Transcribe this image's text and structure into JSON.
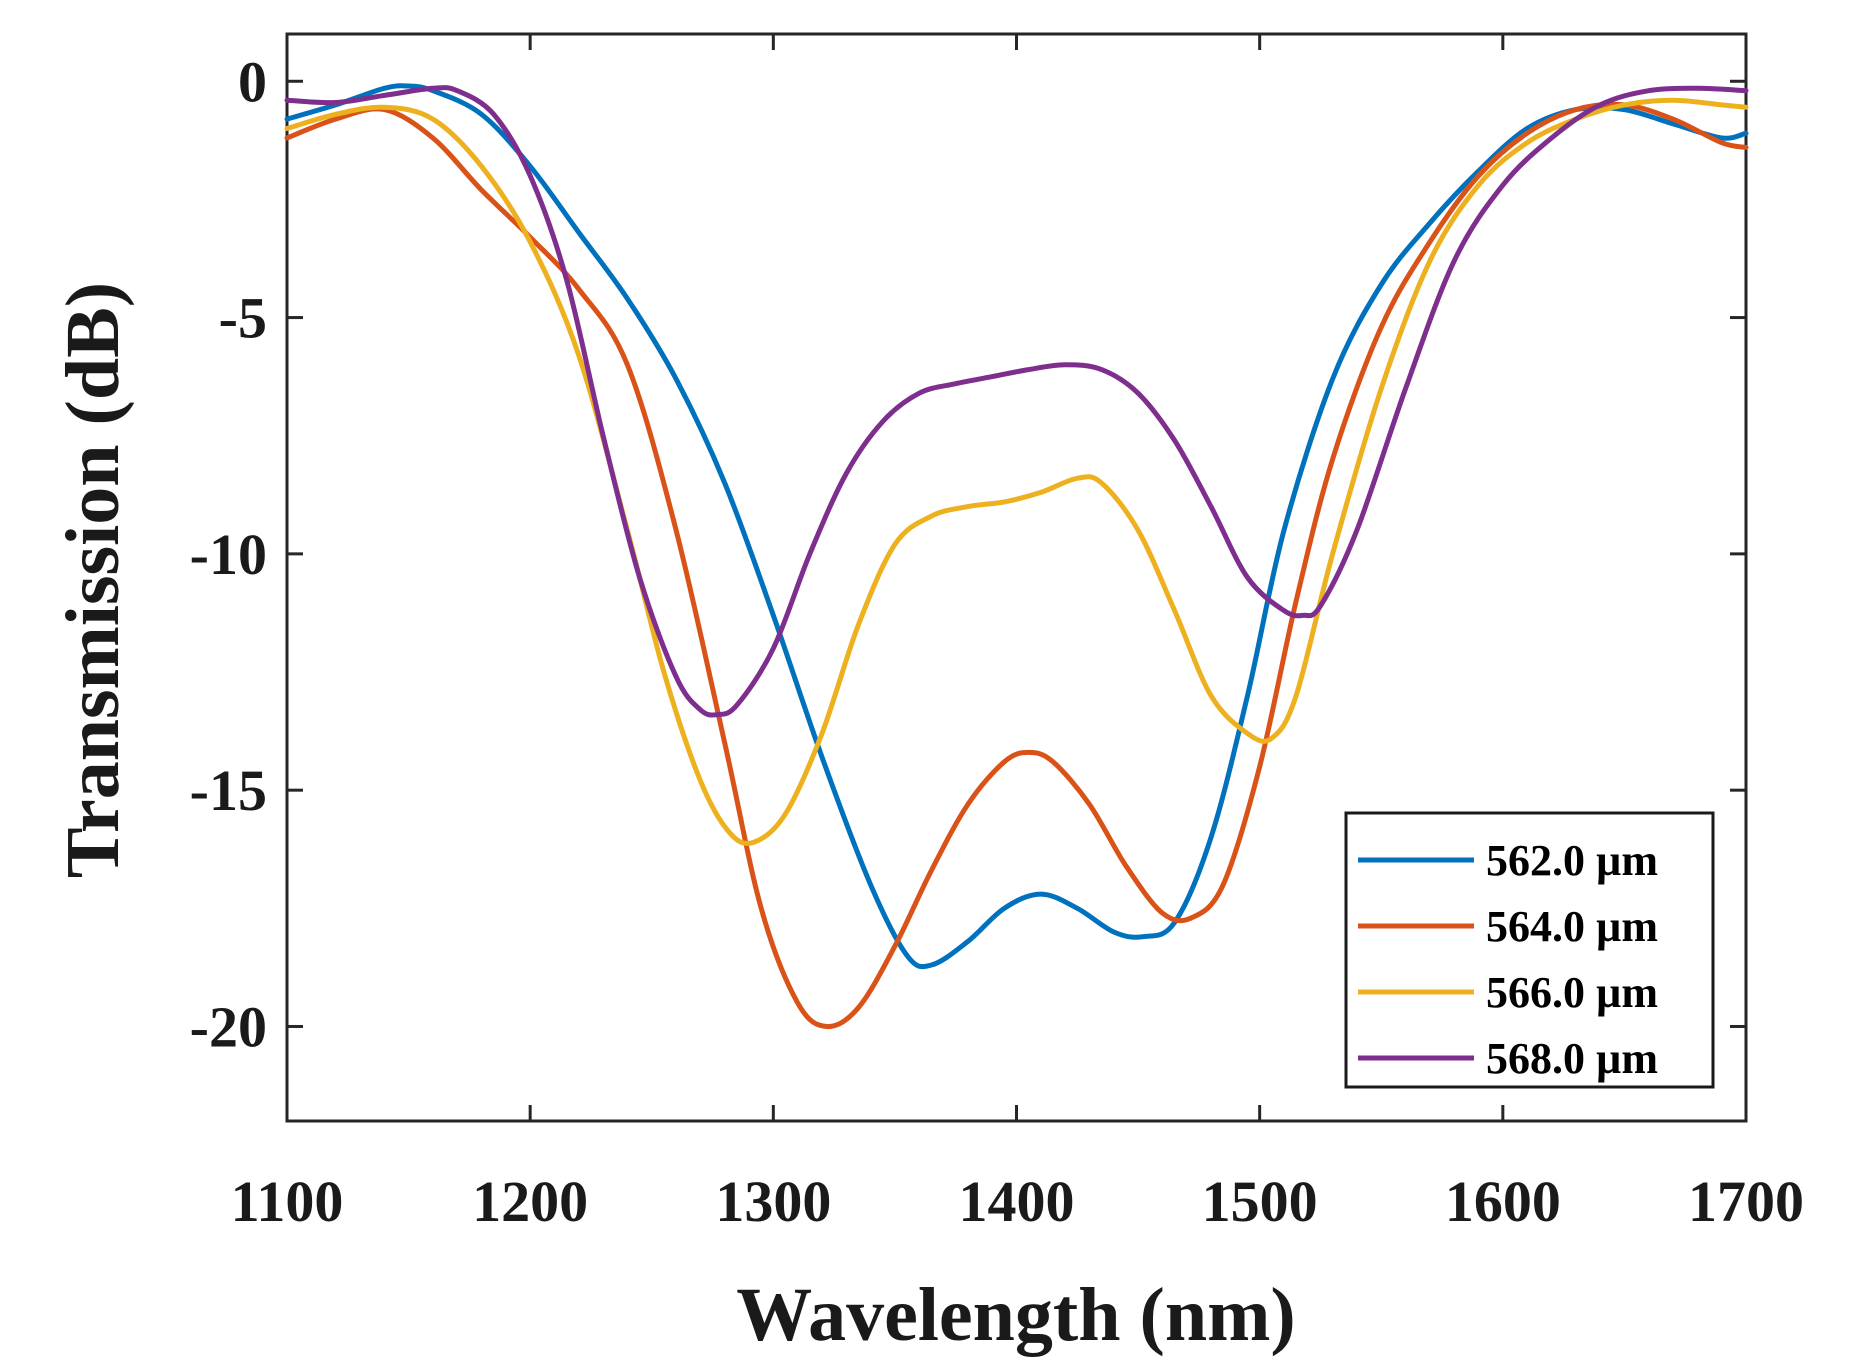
{
  "chart_data": {
    "type": "line",
    "title": "",
    "xlabel": "Wavelength (nm)",
    "ylabel": "Transmission (dB)",
    "xlim": [
      1100,
      1700
    ],
    "ylim": [
      -22,
      1
    ],
    "xticks": [
      1100,
      1200,
      1300,
      1400,
      1500,
      1600,
      1700
    ],
    "yticks": [
      0,
      -5,
      -10,
      -15,
      -20
    ],
    "xtick_labels": [
      "1100",
      "1200",
      "1300",
      "1400",
      "1500",
      "1600",
      "1700"
    ],
    "ytick_labels": [
      "0",
      "-5",
      "-10",
      "-15",
      "-20"
    ],
    "grid": false,
    "legend_position": "bottom-right",
    "series": [
      {
        "name": "562.0 µm",
        "color": "#0072BD",
        "x": [
          1100,
          1120,
          1140,
          1150,
          1160,
          1180,
          1200,
          1220,
          1240,
          1260,
          1280,
          1300,
          1320,
          1340,
          1355,
          1365,
          1380,
          1395,
          1410,
          1425,
          1440,
          1452,
          1465,
          1480,
          1495,
          1510,
          1530,
          1550,
          1570,
          1590,
          1610,
          1630,
          1650,
          1670,
          1690,
          1700
        ],
        "y": [
          -0.8,
          -0.5,
          -0.15,
          -0.1,
          -0.2,
          -0.7,
          -1.8,
          -3.2,
          -4.6,
          -6.3,
          -8.5,
          -11.3,
          -14.3,
          -17.0,
          -18.5,
          -18.7,
          -18.2,
          -17.5,
          -17.2,
          -17.5,
          -18.0,
          -18.1,
          -17.8,
          -16.0,
          -13.0,
          -9.5,
          -6.3,
          -4.3,
          -3.0,
          -1.9,
          -1.0,
          -0.6,
          -0.6,
          -0.9,
          -1.2,
          -1.1
        ]
      },
      {
        "name": "564.0 µm",
        "color": "#D95319",
        "x": [
          1100,
          1120,
          1140,
          1160,
          1180,
          1200,
          1220,
          1240,
          1260,
          1280,
          1295,
          1310,
          1322,
          1335,
          1350,
          1365,
          1380,
          1395,
          1405,
          1415,
          1430,
          1445,
          1460,
          1472,
          1485,
          1500,
          1515,
          1530,
          1550,
          1570,
          1590,
          1610,
          1630,
          1650,
          1670,
          1690,
          1700
        ],
        "y": [
          -1.2,
          -0.8,
          -0.6,
          -1.2,
          -2.3,
          -3.3,
          -4.4,
          -6.0,
          -9.5,
          -14.0,
          -17.5,
          -19.5,
          -20.0,
          -19.6,
          -18.3,
          -16.7,
          -15.3,
          -14.4,
          -14.2,
          -14.4,
          -15.3,
          -16.6,
          -17.6,
          -17.7,
          -17.0,
          -14.5,
          -11.0,
          -8.0,
          -5.2,
          -3.4,
          -2.0,
          -1.1,
          -0.6,
          -0.5,
          -0.8,
          -1.3,
          -1.4
        ]
      },
      {
        "name": "566.0 µm",
        "color": "#EDB120",
        "x": [
          1100,
          1120,
          1140,
          1160,
          1180,
          1200,
          1220,
          1240,
          1255,
          1270,
          1282,
          1292,
          1305,
          1320,
          1335,
          1350,
          1365,
          1380,
          1395,
          1410,
          1425,
          1435,
          1450,
          1465,
          1480,
          1495,
          1505,
          1515,
          1530,
          1550,
          1570,
          1590,
          1610,
          1630,
          1650,
          1670,
          1690,
          1700
        ],
        "y": [
          -1.0,
          -0.7,
          -0.55,
          -0.8,
          -1.8,
          -3.4,
          -5.8,
          -9.5,
          -12.5,
          -14.8,
          -15.9,
          -16.1,
          -15.5,
          -13.8,
          -11.5,
          -9.8,
          -9.2,
          -9.0,
          -8.9,
          -8.7,
          -8.4,
          -8.5,
          -9.5,
          -11.2,
          -13.0,
          -13.8,
          -13.9,
          -13.0,
          -10.0,
          -6.5,
          -3.8,
          -2.2,
          -1.3,
          -0.8,
          -0.5,
          -0.4,
          -0.5,
          -0.55
        ]
      },
      {
        "name": "568.0 µm",
        "color": "#7E2F8E",
        "x": [
          1100,
          1120,
          1140,
          1160,
          1170,
          1185,
          1200,
          1215,
          1230,
          1245,
          1260,
          1270,
          1277,
          1285,
          1300,
          1315,
          1330,
          1345,
          1360,
          1375,
          1390,
          1405,
          1420,
          1435,
          1450,
          1465,
          1480,
          1495,
          1510,
          1518,
          1525,
          1540,
          1560,
          1580,
          1600,
          1620,
          1640,
          1660,
          1680,
          1700
        ],
        "y": [
          -0.4,
          -0.45,
          -0.3,
          -0.15,
          -0.2,
          -0.7,
          -2.0,
          -4.2,
          -7.5,
          -10.5,
          -12.6,
          -13.3,
          -13.4,
          -13.2,
          -12.0,
          -10.0,
          -8.3,
          -7.2,
          -6.6,
          -6.4,
          -6.25,
          -6.1,
          -6.0,
          -6.1,
          -6.6,
          -7.6,
          -9.0,
          -10.5,
          -11.2,
          -11.3,
          -11.1,
          -9.5,
          -6.5,
          -3.8,
          -2.2,
          -1.2,
          -0.5,
          -0.2,
          -0.15,
          -0.2
        ]
      }
    ]
  }
}
